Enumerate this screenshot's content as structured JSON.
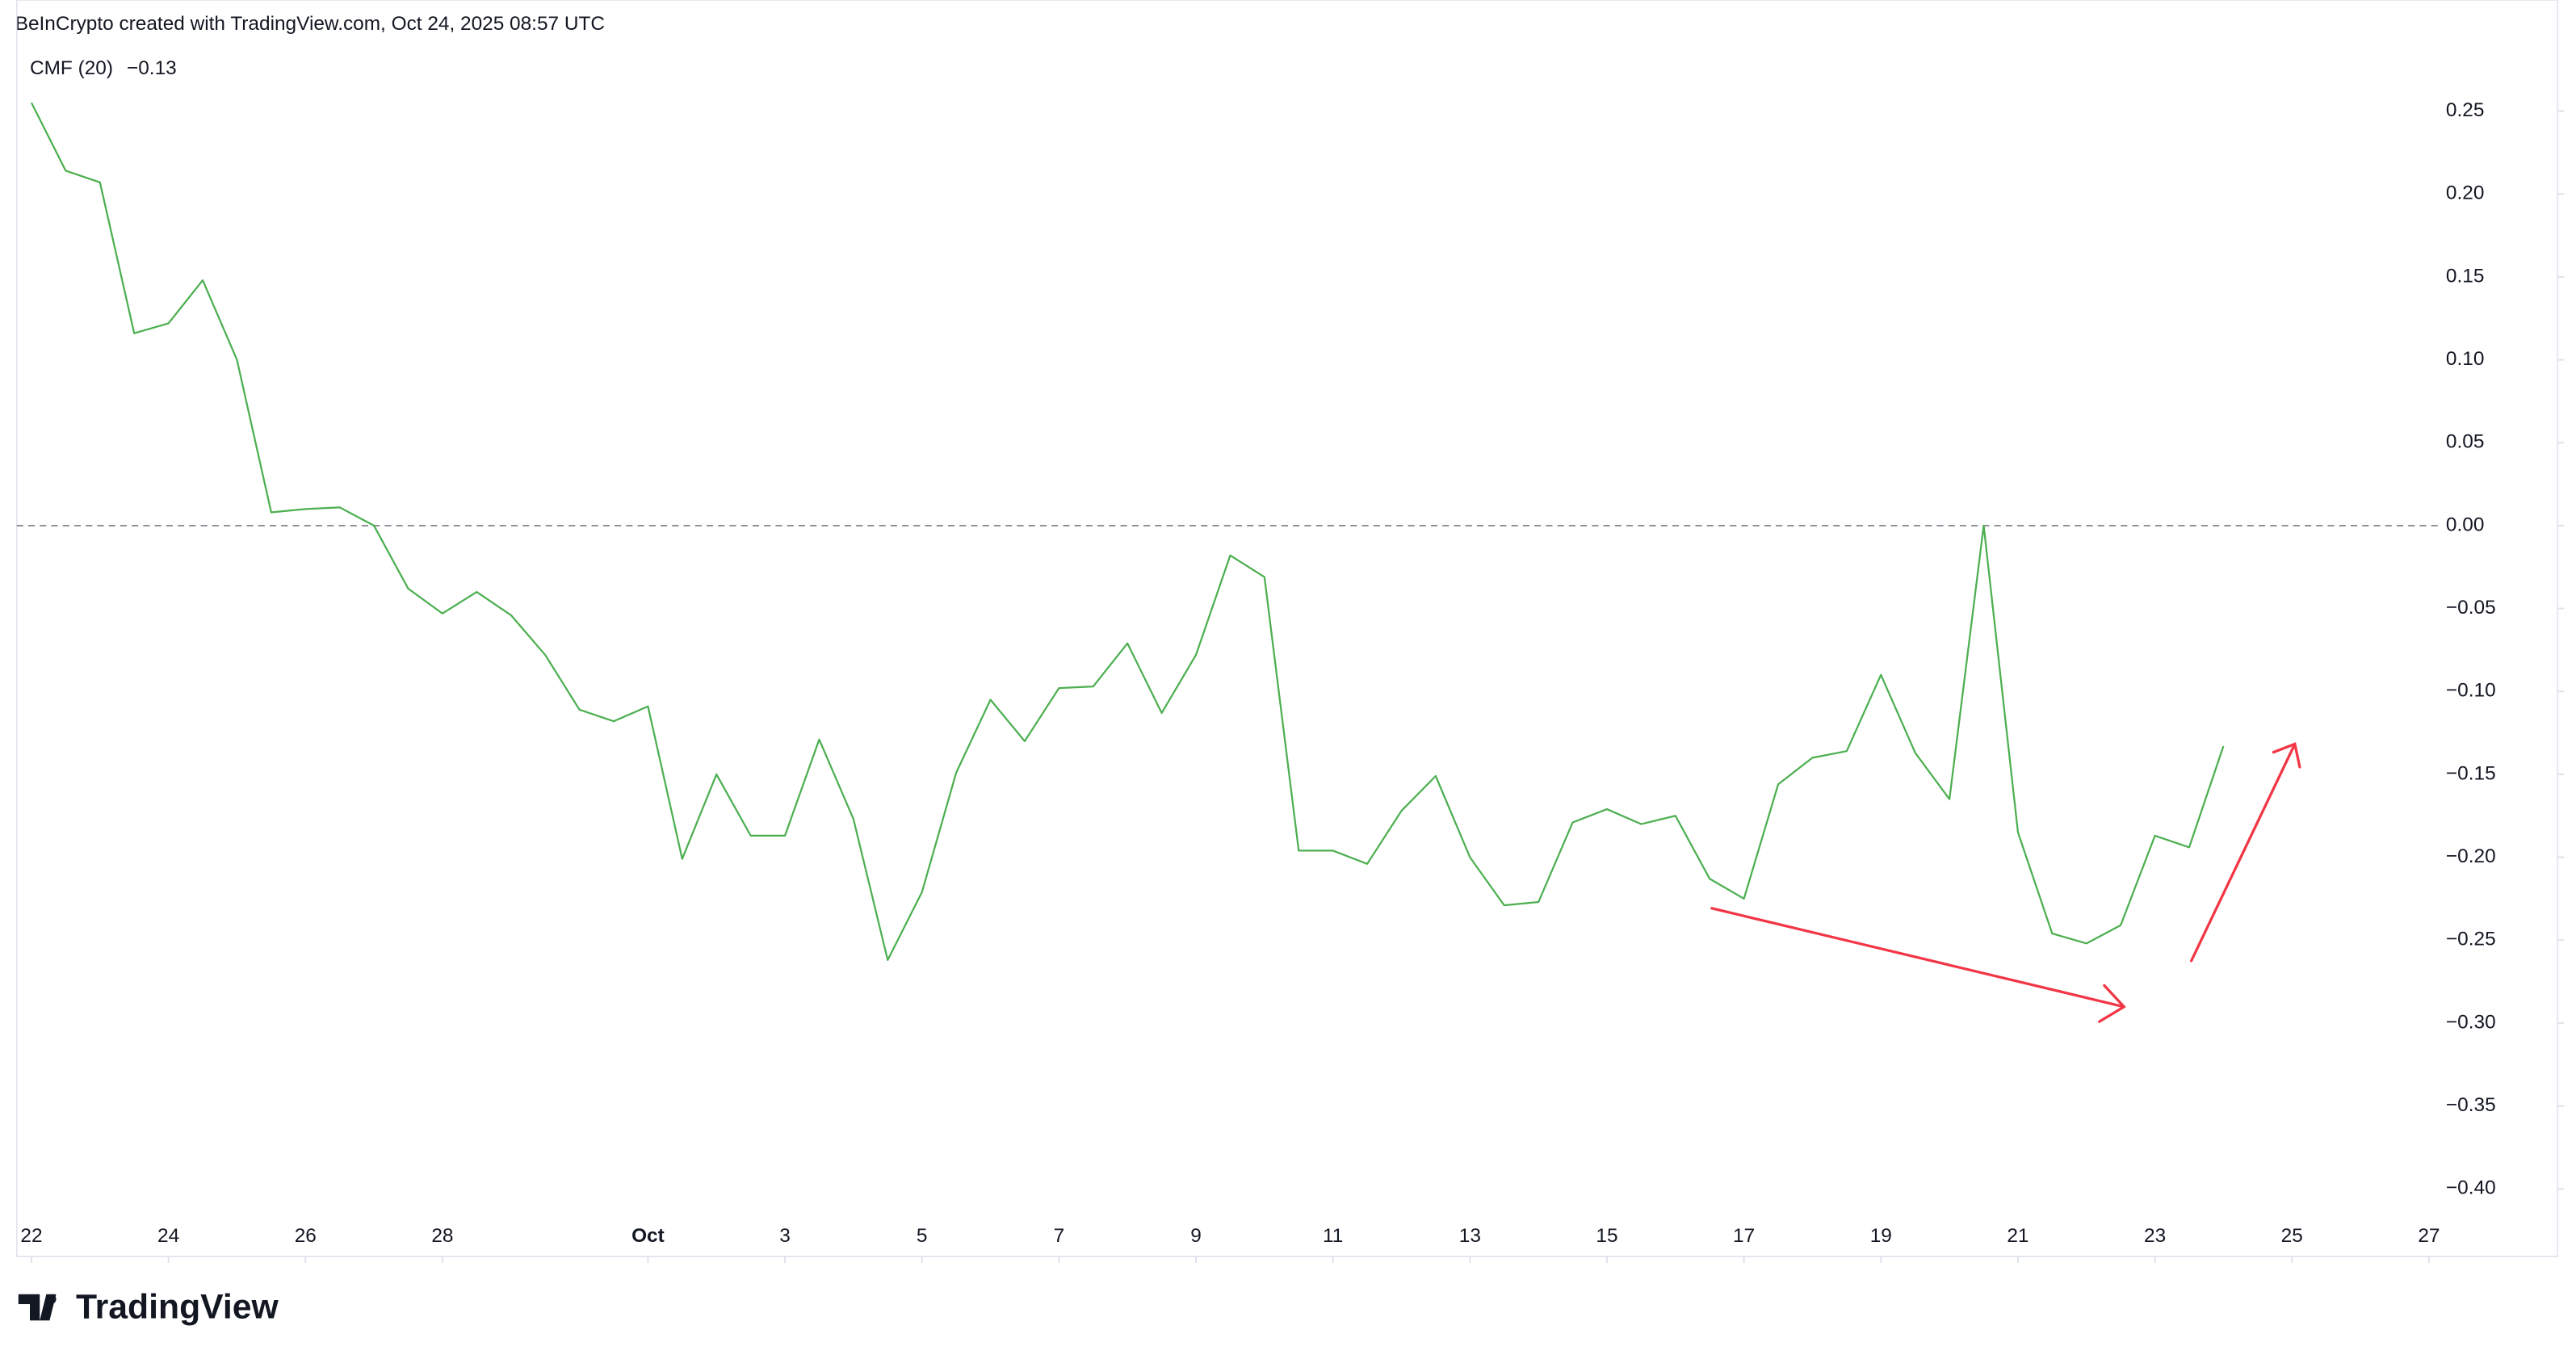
{
  "header": {
    "text": "BeInCrypto created with TradingView.com, Oct 24, 2025 08:57 UTC"
  },
  "chart_data": {
    "type": "line",
    "series": [
      {
        "name": "CMF (20)",
        "color": "#4caf50",
        "last_value": -0.13,
        "last_value_label": "−0.13",
        "values": [
          0.255,
          0.214,
          0.207,
          0.116,
          0.122,
          0.148,
          0.1,
          0.008,
          0.01,
          0.011,
          0.0,
          -0.038,
          -0.053,
          -0.04,
          -0.054,
          -0.078,
          -0.111,
          -0.118,
          -0.109,
          -0.201,
          -0.15,
          -0.187,
          -0.187,
          -0.129,
          -0.177,
          -0.262,
          -0.221,
          -0.149,
          -0.105,
          -0.13,
          -0.098,
          -0.097,
          -0.071,
          -0.113,
          -0.078,
          -0.018,
          -0.031,
          -0.196,
          -0.196,
          -0.204,
          -0.172,
          -0.151,
          -0.2,
          -0.229,
          -0.227,
          -0.179,
          -0.171,
          -0.18,
          -0.175,
          -0.213,
          -0.225,
          -0.156,
          -0.14,
          -0.136,
          -0.09,
          -0.137,
          -0.165,
          0.0,
          -0.185,
          -0.246,
          -0.252,
          -0.241,
          -0.187,
          -0.194,
          -0.133
        ]
      }
    ],
    "xlim": [
      -0.43,
      70.4
    ],
    "xticks": [
      {
        "value": 0,
        "label": "22"
      },
      {
        "value": 4,
        "label": "24"
      },
      {
        "value": 8,
        "label": "26"
      },
      {
        "value": 12,
        "label": "28"
      },
      {
        "value": 18,
        "label": "Oct"
      },
      {
        "value": 22,
        "label": "3"
      },
      {
        "value": 26,
        "label": "5"
      },
      {
        "value": 30,
        "label": "7"
      },
      {
        "value": 34,
        "label": "9"
      },
      {
        "value": 38,
        "label": "11"
      },
      {
        "value": 42,
        "label": "13"
      },
      {
        "value": 46,
        "label": "15"
      },
      {
        "value": 50,
        "label": "17"
      },
      {
        "value": 54,
        "label": "19"
      },
      {
        "value": 58,
        "label": "21"
      },
      {
        "value": 62,
        "label": "23"
      },
      {
        "value": 66,
        "label": "25"
      },
      {
        "value": 70,
        "label": "27"
      }
    ],
    "ylim": [
      -0.416,
      0.317
    ],
    "yticks": [
      0.25,
      {
        "value": 0.2,
        "label": "0.20"
      },
      0.15,
      {
        "value": 0.1,
        "label": "0.10"
      },
      0.05,
      {
        "value": 0,
        "label": "0.00"
      },
      {
        "value": -0.05,
        "label": "−0.05"
      },
      {
        "value": -0.1,
        "label": "−0.10"
      },
      {
        "value": -0.15,
        "label": "−0.15"
      },
      {
        "value": -0.2,
        "label": "−0.20"
      },
      {
        "value": -0.25,
        "label": "−0.25"
      },
      {
        "value": -0.3,
        "label": "−0.30"
      },
      {
        "value": -0.35,
        "label": "−0.35"
      },
      {
        "value": -0.4,
        "label": "−0.40"
      }
    ],
    "reference_line": 0,
    "grid": false
  },
  "footer": {
    "brand": "TradingView"
  }
}
